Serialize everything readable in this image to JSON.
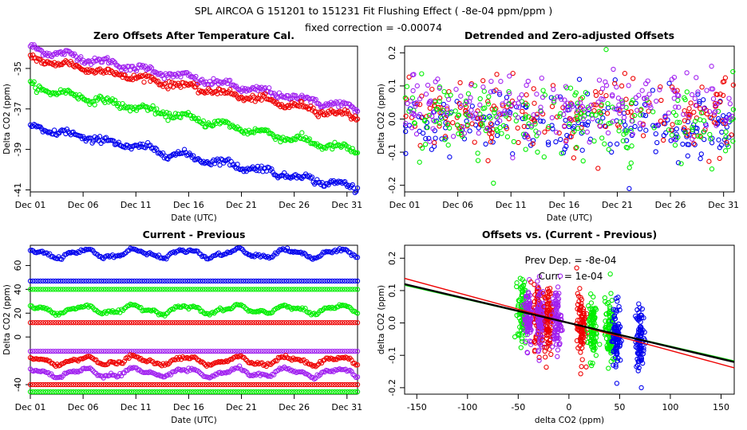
{
  "figure": {
    "title": "SPL   AIRCOA G   151201 to 151231   Fit Flushing Effect ( -8e-04 ppm/ppm )",
    "subtitle": "fixed correction = -0.00074"
  },
  "colors": {
    "blue": "#0000ee",
    "red": "#ee0000",
    "green": "#00ee00",
    "purple": "#a020f0",
    "black": "#000000"
  },
  "chart_data": [
    {
      "id": "p1",
      "type": "scatter",
      "title": "Zero Offsets After Temperature Cal.",
      "xlabel": "Date (UTC)",
      "ylabel": "Delta CO2 (ppm)",
      "x_ticks": [
        "Dec 01",
        "Dec 06",
        "Dec 11",
        "Dec 16",
        "Dec 21",
        "Dec 26",
        "Dec 31"
      ],
      "y_ticks": [
        "-35",
        "-37",
        "-39",
        "-41"
      ],
      "xlim": [
        1,
        32
      ],
      "ylim": [
        -41.1,
        -33.9
      ],
      "series": [
        {
          "color": "purple",
          "x": [
            1,
            32
          ],
          "y": [
            -34.0,
            -37.0
          ],
          "noise": 0.08
        },
        {
          "color": "red",
          "x": [
            1,
            32
          ],
          "y": [
            -34.5,
            -37.4
          ],
          "noise": 0.08
        },
        {
          "color": "green",
          "x": [
            1,
            32
          ],
          "y": [
            -35.9,
            -39.1
          ],
          "noise": 0.08
        },
        {
          "color": "blue",
          "x": [
            1,
            32
          ],
          "y": [
            -37.9,
            -40.9
          ],
          "noise": 0.08
        }
      ]
    },
    {
      "id": "p2",
      "type": "scatter",
      "title": "Detrended and Zero-adjusted Offsets",
      "xlabel": "Date (UTC)",
      "ylabel": "Delta CO2 (ppm)",
      "x_ticks": [
        "Dec 01",
        "Dec 06",
        "Dec 11",
        "Dec 16",
        "Dec 21",
        "Dec 26",
        "Dec 31"
      ],
      "y_ticks": [
        "0.2",
        "0.1",
        "0.0",
        "-0.1",
        "-0.2"
      ],
      "xlim": [
        1,
        32
      ],
      "ylim": [
        -0.22,
        0.22
      ],
      "series": [
        {
          "color": "blue",
          "mean": -0.02,
          "sd": 0.05
        },
        {
          "color": "red",
          "mean": 0.02,
          "sd": 0.05
        },
        {
          "color": "green",
          "mean": 0.0,
          "sd": 0.06
        },
        {
          "color": "purple",
          "mean": 0.04,
          "sd": 0.05
        }
      ]
    },
    {
      "id": "p3",
      "type": "scatter",
      "title": "Current - Previous",
      "xlabel": "Date (UTC)",
      "ylabel": "Delta CO2 (ppm)",
      "x_ticks": [
        "Dec 01",
        "Dec 06",
        "Dec 11",
        "Dec 16",
        "Dec 21",
        "Dec 26",
        "Dec 31"
      ],
      "y_ticks": [
        "60",
        "40",
        "20",
        "0",
        "-40"
      ],
      "xlim": [
        1,
        32
      ],
      "ylim": [
        -48,
        77
      ],
      "series": [
        {
          "color": "blue",
          "level": 70,
          "wave": 3
        },
        {
          "color": "blue",
          "level": 47,
          "wave": 0
        },
        {
          "color": "green",
          "level": 40,
          "wave": 0
        },
        {
          "color": "green",
          "level": 23,
          "wave": 3
        },
        {
          "color": "red",
          "level": 12,
          "wave": 0
        },
        {
          "color": "purple",
          "level": -12,
          "wave": 0
        },
        {
          "color": "red",
          "level": -20,
          "wave": 3
        },
        {
          "color": "purple",
          "level": -30,
          "wave": 3
        },
        {
          "color": "red",
          "level": -40,
          "wave": 0
        },
        {
          "color": "green",
          "level": -46,
          "wave": 0
        }
      ]
    },
    {
      "id": "p4",
      "type": "scatter",
      "title": "Offsets vs. (Current - Previous)",
      "xlabel": "delta CO2 (ppm)",
      "ylabel": "delta CO2 (ppm)",
      "x_ticks": [
        "-150",
        "-100",
        "-50",
        "0",
        "50",
        "100",
        "150"
      ],
      "y_ticks": [
        "0.2",
        "0.1",
        "0.0",
        "-0.1",
        "-0.2"
      ],
      "xlim": [
        -162,
        163
      ],
      "ylim": [
        -0.22,
        0.24
      ],
      "annotations": [
        "Prev Dep. = -8e-04",
        "Curr. = 1e-04"
      ],
      "clusters": [
        {
          "color": "green",
          "x": -46
        },
        {
          "color": "purple",
          "x": -40
        },
        {
          "color": "red",
          "x": -30
        },
        {
          "color": "purple",
          "x": -28
        },
        {
          "color": "red",
          "x": -20
        },
        {
          "color": "purple",
          "x": -12
        },
        {
          "color": "red",
          "x": 12
        },
        {
          "color": "green",
          "x": 23
        },
        {
          "color": "green",
          "x": 40
        },
        {
          "color": "blue",
          "x": 47
        },
        {
          "color": "blue",
          "x": 70
        }
      ],
      "fit_lines": [
        {
          "color": "green",
          "slope": -0.00072,
          "intercept": 0.0
        },
        {
          "color": "red",
          "slope": -0.00085,
          "intercept": 0.0
        },
        {
          "color": "black",
          "slope": -0.00074,
          "intercept": 0.0
        }
      ]
    }
  ]
}
